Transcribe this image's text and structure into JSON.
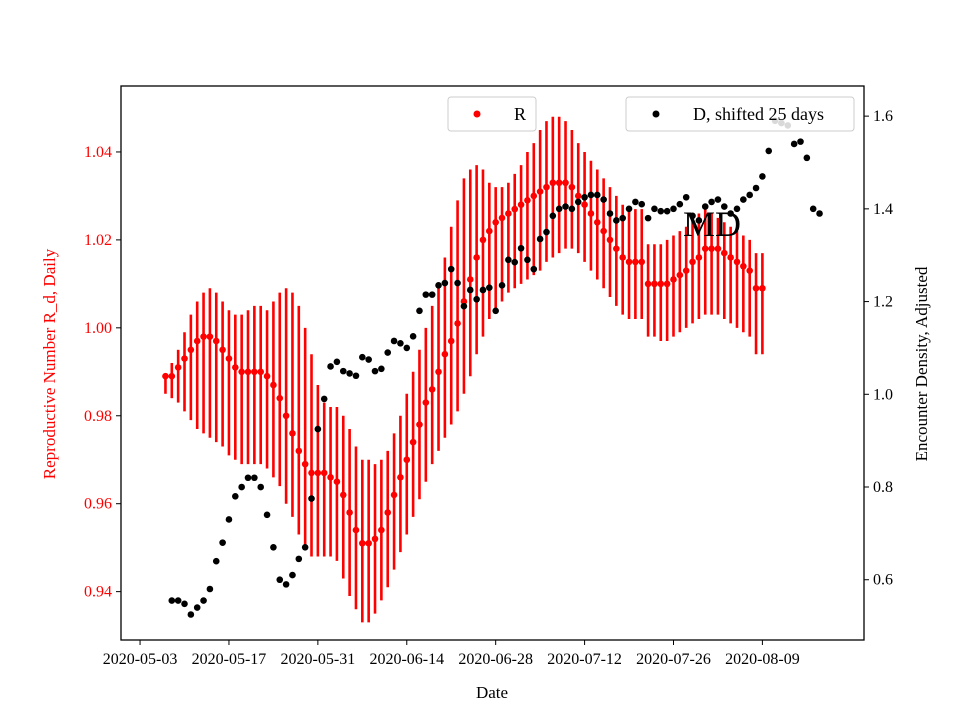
{
  "chart_data": {
    "type": "scatter",
    "state_label": "MD",
    "xlabel": "Date",
    "ylabel_left": "Reproductive Number R_d, Daily",
    "ylabel_right": "Encounter Density, Adjusted",
    "xlim": [
      "2020-04-30",
      "2020-08-25"
    ],
    "ylim_left": [
      0.929,
      1.055
    ],
    "ylim_right": [
      0.47,
      1.665
    ],
    "x_ticks": [
      "2020-05-03",
      "2020-05-17",
      "2020-05-31",
      "2020-06-14",
      "2020-06-28",
      "2020-07-12",
      "2020-07-26",
      "2020-08-09"
    ],
    "y_ticks_left": [
      "0.94",
      "0.96",
      "0.98",
      "1.00",
      "1.02",
      "1.04"
    ],
    "y_ticks_right": [
      "0.6",
      "0.8",
      "1.0",
      "1.2",
      "1.4",
      "1.6"
    ],
    "colors": {
      "R": "#ff0000",
      "D": "#000000",
      "left_axis": "#ff0000",
      "right_axis": "#000000"
    },
    "legend": {
      "R_label": "R",
      "D_label": "D, shifted 25 days",
      "R_position": "upper-center",
      "D_position": "upper-right"
    },
    "series": [
      {
        "name": "R",
        "axis": "left",
        "start_date": "2020-05-07",
        "values": [
          0.989,
          0.989,
          0.991,
          0.993,
          0.995,
          0.997,
          0.998,
          0.998,
          0.997,
          0.995,
          0.993,
          0.991,
          0.99,
          0.99,
          0.99,
          0.99,
          0.989,
          0.987,
          0.984,
          0.98,
          0.976,
          0.972,
          0.969,
          0.967,
          0.967,
          0.967,
          0.966,
          0.965,
          0.962,
          0.958,
          0.954,
          0.951,
          0.951,
          0.952,
          0.954,
          0.958,
          0.962,
          0.966,
          0.97,
          0.974,
          0.978,
          0.983,
          0.986,
          0.99,
          0.994,
          0.997,
          1.001,
          1.006,
          1.011,
          1.016,
          1.02,
          1.022,
          1.024,
          1.025,
          1.026,
          1.027,
          1.028,
          1.029,
          1.03,
          1.031,
          1.032,
          1.033,
          1.033,
          1.033,
          1.032,
          1.03,
          1.028,
          1.026,
          1.024,
          1.022,
          1.02,
          1.018,
          1.016,
          1.015,
          1.015,
          1.015,
          1.01,
          1.01,
          1.01,
          1.01,
          1.011,
          1.012,
          1.013,
          1.015,
          1.016,
          1.018,
          1.018,
          1.018,
          1.017,
          1.016,
          1.015,
          1.014,
          1.013,
          1.009,
          1.009
        ],
        "lower": [
          0.985,
          0.984,
          0.983,
          0.981,
          0.979,
          0.977,
          0.976,
          0.975,
          0.974,
          0.973,
          0.971,
          0.97,
          0.969,
          0.969,
          0.969,
          0.969,
          0.968,
          0.966,
          0.964,
          0.96,
          0.957,
          0.953,
          0.95,
          0.948,
          0.948,
          0.948,
          0.948,
          0.947,
          0.943,
          0.939,
          0.936,
          0.933,
          0.933,
          0.935,
          0.938,
          0.941,
          0.945,
          0.949,
          0.953,
          0.957,
          0.961,
          0.965,
          0.969,
          0.972,
          0.975,
          0.978,
          0.981,
          0.985,
          0.989,
          0.994,
          0.998,
          1.002,
          1.004,
          1.006,
          1.008,
          1.009,
          1.01,
          1.011,
          1.012,
          1.013,
          1.015,
          1.016,
          1.017,
          1.018,
          1.018,
          1.017,
          1.015,
          1.013,
          1.011,
          1.009,
          1.007,
          1.005,
          1.003,
          1.002,
          1.002,
          1.002,
          0.998,
          0.998,
          0.997,
          0.997,
          0.998,
          0.999,
          1.0,
          1.001,
          1.002,
          1.003,
          1.003,
          1.003,
          1.002,
          1.001,
          1.0,
          0.999,
          0.998,
          0.994,
          0.994
        ],
        "upper": [
          0.989,
          0.992,
          0.995,
          0.999,
          1.003,
          1.006,
          1.008,
          1.009,
          1.008,
          1.006,
          1.004,
          1.003,
          1.003,
          1.004,
          1.005,
          1.005,
          1.004,
          1.006,
          1.008,
          1.009,
          1.008,
          1.005,
          1.0,
          0.994,
          0.987,
          0.983,
          0.982,
          0.982,
          0.98,
          0.977,
          0.973,
          0.97,
          0.97,
          0.969,
          0.97,
          0.972,
          0.976,
          0.98,
          0.985,
          0.99,
          0.995,
          1.0,
          1.005,
          1.01,
          1.016,
          1.023,
          1.029,
          1.034,
          1.036,
          1.037,
          1.036,
          1.033,
          1.032,
          1.032,
          1.033,
          1.035,
          1.037,
          1.04,
          1.042,
          1.045,
          1.047,
          1.048,
          1.048,
          1.047,
          1.045,
          1.042,
          1.04,
          1.038,
          1.036,
          1.034,
          1.032,
          1.03,
          1.028,
          1.027,
          1.027,
          1.027,
          1.019,
          1.019,
          1.019,
          1.02,
          1.021,
          1.022,
          1.023,
          1.025,
          1.026,
          1.027,
          1.026,
          1.025,
          1.024,
          1.023,
          1.022,
          1.021,
          1.02,
          1.017,
          1.017
        ]
      },
      {
        "name": "D, shifted 25 days",
        "axis": "right",
        "points": [
          [
            "2020-05-08",
            0.555
          ],
          [
            "2020-05-09",
            0.555
          ],
          [
            "2020-05-10",
            0.548
          ],
          [
            "2020-05-11",
            0.525
          ],
          [
            "2020-05-12",
            0.54
          ],
          [
            "2020-05-13",
            0.555
          ],
          [
            "2020-05-14",
            0.58
          ],
          [
            "2020-05-15",
            0.64
          ],
          [
            "2020-05-16",
            0.68
          ],
          [
            "2020-05-17",
            0.73
          ],
          [
            "2020-05-18",
            0.78
          ],
          [
            "2020-05-19",
            0.8
          ],
          [
            "2020-05-20",
            0.82
          ],
          [
            "2020-05-21",
            0.82
          ],
          [
            "2020-05-22",
            0.8
          ],
          [
            "2020-05-23",
            0.74
          ],
          [
            "2020-05-24",
            0.67
          ],
          [
            "2020-05-25",
            0.6
          ],
          [
            "2020-05-26",
            0.59
          ],
          [
            "2020-05-27",
            0.61
          ],
          [
            "2020-05-28",
            0.645
          ],
          [
            "2020-05-29",
            0.67
          ],
          [
            "2020-05-30",
            0.775
          ],
          [
            "2020-05-31",
            0.925
          ],
          [
            "2020-06-01",
            0.99
          ],
          [
            "2020-06-02",
            1.06
          ],
          [
            "2020-06-03",
            1.07
          ],
          [
            "2020-06-04",
            1.05
          ],
          [
            "2020-06-05",
            1.045
          ],
          [
            "2020-06-06",
            1.04
          ],
          [
            "2020-06-07",
            1.08
          ],
          [
            "2020-06-08",
            1.075
          ],
          [
            "2020-06-09",
            1.05
          ],
          [
            "2020-06-10",
            1.055
          ],
          [
            "2020-06-11",
            1.09
          ],
          [
            "2020-06-12",
            1.115
          ],
          [
            "2020-06-13",
            1.11
          ],
          [
            "2020-06-14",
            1.1
          ],
          [
            "2020-06-15",
            1.125
          ],
          [
            "2020-06-16",
            1.18
          ],
          [
            "2020-06-17",
            1.215
          ],
          [
            "2020-06-18",
            1.215
          ],
          [
            "2020-06-19",
            1.235
          ],
          [
            "2020-06-20",
            1.24
          ],
          [
            "2020-06-21",
            1.27
          ],
          [
            "2020-06-22",
            1.24
          ],
          [
            "2020-06-23",
            1.19
          ],
          [
            "2020-06-24",
            1.225
          ],
          [
            "2020-06-25",
            1.205
          ],
          [
            "2020-06-26",
            1.225
          ],
          [
            "2020-06-27",
            1.23
          ],
          [
            "2020-06-28",
            1.18
          ],
          [
            "2020-06-29",
            1.235
          ],
          [
            "2020-06-30",
            1.29
          ],
          [
            "2020-07-01",
            1.285
          ],
          [
            "2020-07-02",
            1.315
          ],
          [
            "2020-07-03",
            1.29
          ],
          [
            "2020-07-04",
            1.27
          ],
          [
            "2020-07-05",
            1.335
          ],
          [
            "2020-07-06",
            1.35
          ],
          [
            "2020-07-07",
            1.385
          ],
          [
            "2020-07-08",
            1.4
          ],
          [
            "2020-07-09",
            1.405
          ],
          [
            "2020-07-10",
            1.4
          ],
          [
            "2020-07-11",
            1.415
          ],
          [
            "2020-07-12",
            1.425
          ],
          [
            "2020-07-13",
            1.43
          ],
          [
            "2020-07-14",
            1.43
          ],
          [
            "2020-07-15",
            1.42
          ],
          [
            "2020-07-16",
            1.39
          ],
          [
            "2020-07-17",
            1.375
          ],
          [
            "2020-07-18",
            1.38
          ],
          [
            "2020-07-19",
            1.4
          ],
          [
            "2020-07-20",
            1.415
          ],
          [
            "2020-07-21",
            1.41
          ],
          [
            "2020-07-22",
            1.38
          ],
          [
            "2020-07-23",
            1.4
          ],
          [
            "2020-07-24",
            1.395
          ],
          [
            "2020-07-25",
            1.395
          ],
          [
            "2020-07-26",
            1.4
          ],
          [
            "2020-07-27",
            1.41
          ],
          [
            "2020-07-28",
            1.425
          ],
          [
            "2020-07-29",
            1.385
          ],
          [
            "2020-07-30",
            1.375
          ],
          [
            "2020-07-31",
            1.405
          ],
          [
            "2020-08-01",
            1.415
          ],
          [
            "2020-08-02",
            1.42
          ],
          [
            "2020-08-03",
            1.405
          ],
          [
            "2020-08-04",
            1.39
          ],
          [
            "2020-08-05",
            1.4
          ],
          [
            "2020-08-06",
            1.42
          ],
          [
            "2020-08-07",
            1.43
          ],
          [
            "2020-08-08",
            1.445
          ],
          [
            "2020-08-09",
            1.47
          ],
          [
            "2020-08-10",
            1.525
          ],
          [
            "2020-08-11",
            1.59
          ],
          [
            "2020-08-12",
            1.585
          ],
          [
            "2020-08-13",
            1.58
          ],
          [
            "2020-08-14",
            1.54
          ],
          [
            "2020-08-15",
            1.545
          ],
          [
            "2020-08-16",
            1.51
          ],
          [
            "2020-08-17",
            1.4
          ],
          [
            "2020-08-18",
            1.39
          ]
        ]
      }
    ]
  }
}
